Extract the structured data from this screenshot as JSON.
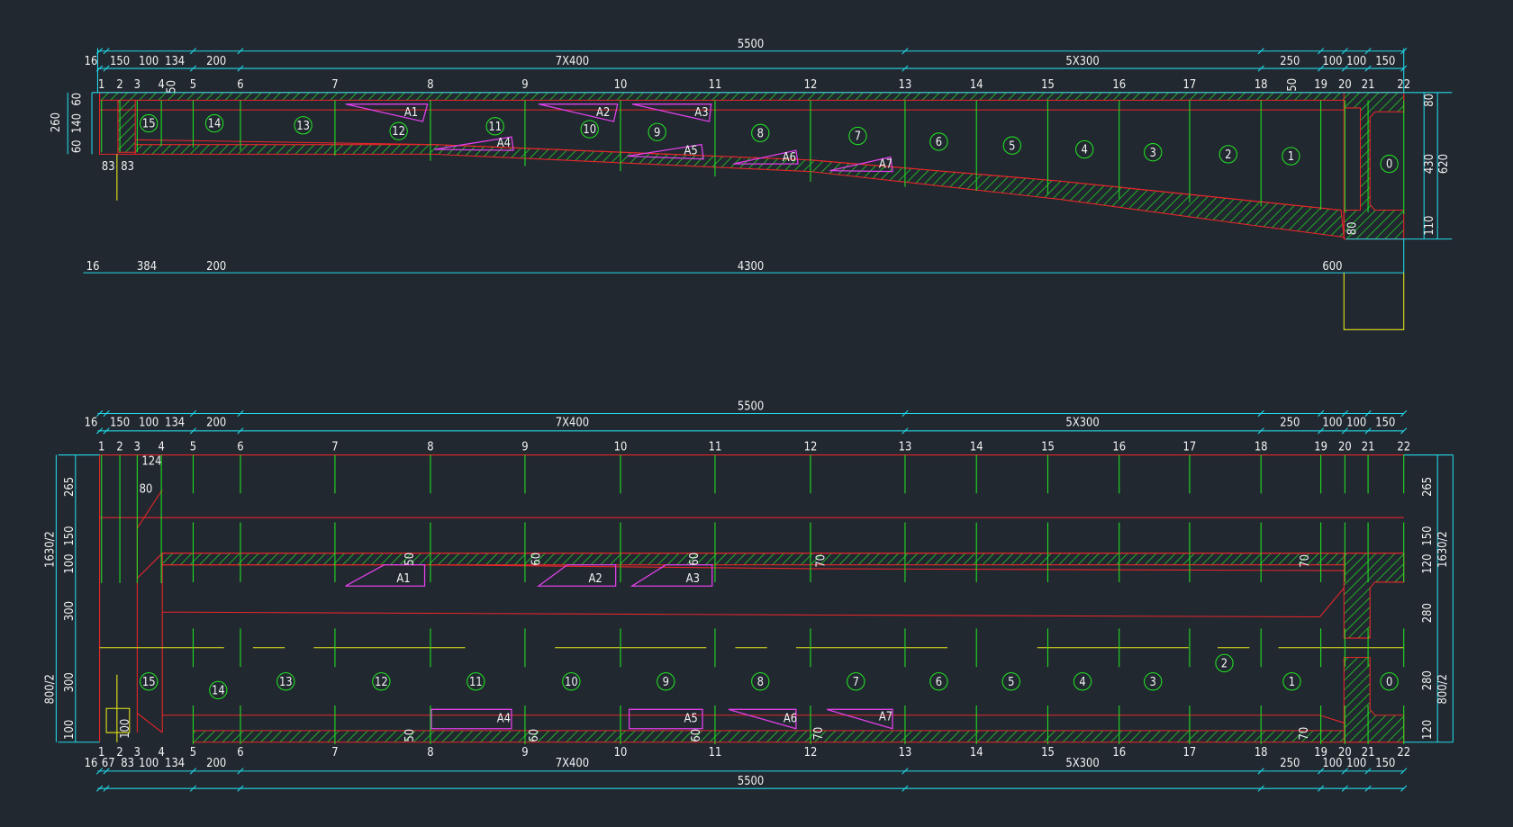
{
  "top": {
    "overall": "5500",
    "dims": [
      "16",
      "150",
      "100",
      "134",
      "200",
      "7X400",
      "5X300",
      "250",
      "100",
      "100",
      "150"
    ],
    "stations": [
      "1",
      "2",
      "3",
      "4",
      "5",
      "6",
      "7",
      "8",
      "9",
      "10",
      "11",
      "12",
      "13",
      "14",
      "15",
      "16",
      "17",
      "18",
      "19",
      "20",
      "21",
      "22"
    ],
    "left_dims": [
      "60",
      "140",
      "60",
      "260"
    ],
    "sub_dims": [
      "83",
      "83"
    ],
    "right_dims": [
      "80",
      "430",
      "620",
      "110"
    ],
    "inner_dims": [
      "50",
      "50",
      "80"
    ],
    "bottom_dims": [
      "16",
      "384",
      "200",
      "4300",
      "600"
    ],
    "zones": [
      "15",
      "14",
      "13",
      "12",
      "11",
      "10",
      "9",
      "8",
      "7",
      "6",
      "5",
      "4",
      "3",
      "2",
      "1",
      "0"
    ],
    "cells": [
      "A1",
      "A2",
      "A3",
      "A4",
      "A5",
      "A6",
      "A7"
    ]
  },
  "bottom": {
    "overall_top": "5500",
    "dims_top": [
      "16",
      "150",
      "100",
      "134",
      "200",
      "7X400",
      "5X300",
      "250",
      "100",
      "100",
      "150"
    ],
    "stations_top": [
      "1",
      "2",
      "3",
      "4",
      "5",
      "6",
      "7",
      "8",
      "9",
      "10",
      "11",
      "12",
      "13",
      "14",
      "15",
      "16",
      "17",
      "18",
      "19",
      "20",
      "21",
      "22"
    ],
    "stations_bottom": [
      "1",
      "2",
      "3",
      "4",
      "5",
      "6",
      "7",
      "8",
      "9",
      "10",
      "11",
      "12",
      "13",
      "14",
      "15",
      "16",
      "17",
      "18",
      "19",
      "20",
      "21",
      "22"
    ],
    "dims_bottom": [
      "16",
      "67",
      "83",
      "100",
      "134",
      "200",
      "7X400",
      "5X300",
      "250",
      "100",
      "100",
      "150"
    ],
    "overall_bottom": "5500",
    "left_dims": [
      "265",
      "150",
      "100",
      "300",
      "300",
      "100",
      "1630/2",
      "800/2"
    ],
    "right_dims": [
      "265",
      "150",
      "120",
      "280",
      "280",
      "120",
      "1630/2",
      "800/2"
    ],
    "small_dims": [
      "124",
      "80"
    ],
    "upper_web_dims": [
      "50",
      "60",
      "60",
      "70",
      "70"
    ],
    "lower_web_dims": [
      "50",
      "60",
      "60",
      "70",
      "70",
      "100"
    ],
    "zones": [
      "15",
      "14",
      "13",
      "12",
      "11",
      "10",
      "9",
      "8",
      "7",
      "6",
      "5",
      "4",
      "3",
      "2",
      "1",
      "0"
    ],
    "cells": [
      "A1",
      "A2",
      "A3",
      "A4",
      "A5",
      "A6",
      "A7"
    ]
  }
}
